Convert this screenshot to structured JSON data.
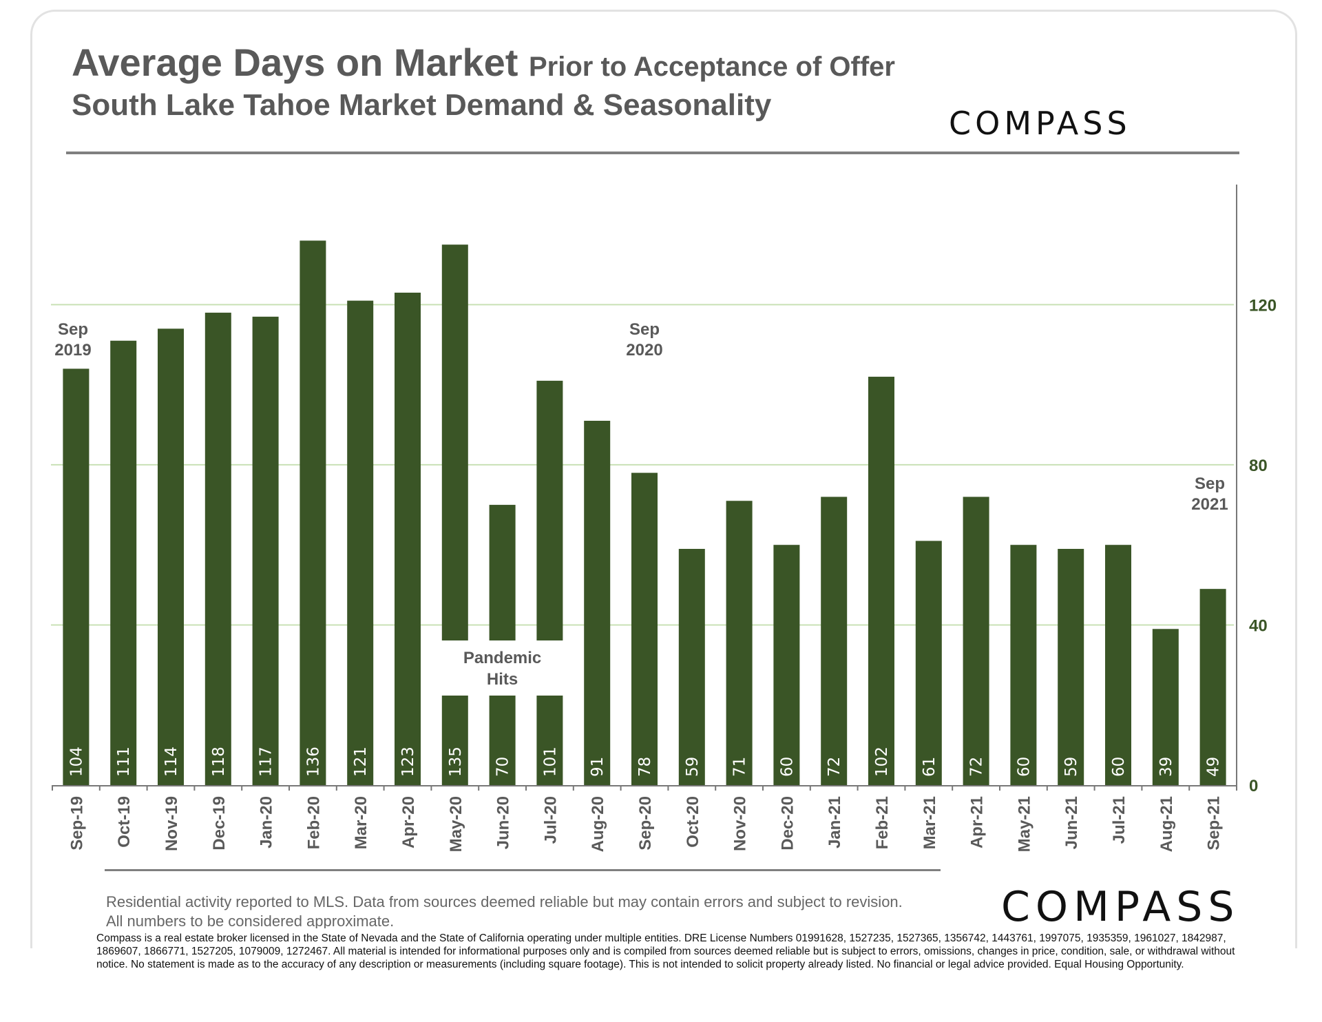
{
  "header": {
    "title": "Average Days on Market",
    "title_suffix": "Prior to Acceptance of Offer",
    "subtitle": "South Lake Tahoe Market Demand & Seasonality",
    "logo_text": "COMPASS"
  },
  "chart_data": {
    "type": "bar",
    "categories": [
      "Sep-19",
      "Oct-19",
      "Nov-19",
      "Dec-19",
      "Jan-20",
      "Feb-20",
      "Mar-20",
      "Apr-20",
      "May-20",
      "Jun-20",
      "Jul-20",
      "Aug-20",
      "Sep-20",
      "Oct-20",
      "Nov-20",
      "Dec-20",
      "Jan-21",
      "Feb-21",
      "Mar-21",
      "Apr-21",
      "May-21",
      "Jun-21",
      "Jul-21",
      "Aug-21",
      "Sep-21"
    ],
    "values": [
      104,
      111,
      114,
      118,
      117,
      136,
      121,
      123,
      135,
      70,
      101,
      91,
      78,
      59,
      71,
      60,
      72,
      102,
      61,
      72,
      60,
      59,
      60,
      39,
      49
    ],
    "ylim": [
      0,
      150
    ],
    "yticks": [
      0,
      40,
      80,
      120
    ],
    "y_axis_side": "right",
    "grid": true,
    "bar_color": "#3a5526",
    "grid_color": "#c9e0b5",
    "tick_label_color": "#3a5526",
    "annotations": [
      {
        "category": "Sep-19",
        "line1": "Sep",
        "line2": "2019"
      },
      {
        "category": "Sep-20",
        "line1": "Sep",
        "line2": "2020"
      },
      {
        "category": "Sep-21",
        "line1": "Sep",
        "line2": "2021"
      }
    ],
    "callout": {
      "line1": "Pandemic",
      "line2": "Hits",
      "category": "Jun-20"
    }
  },
  "footer": {
    "source_note": "Residential activity reported to MLS. Data from sources deemed reliable but may contain errors and subject to revision. All numbers to be considered approximate.",
    "logo_text": "COMPASS",
    "disclaimer": "Compass is a real estate broker licensed in the State of Nevada and the State of California operating under multiple entities. DRE License Numbers 01991628, 1527235, 1527365, 1356742, 1443761, 1997075, 1935359, 1961027, 1842987, 1869607, 1866771, 1527205, 1079009, 1272467. All material is intended for informational purposes only and is compiled from sources deemed reliable but is subject to errors, omissions, changes in price, condition, sale, or withdrawal without notice. No statement is made as to the accuracy of any description or measurements (including square footage). This is not intended to solicit property already listed. No financial or legal advice provided. Equal Housing Opportunity."
  }
}
